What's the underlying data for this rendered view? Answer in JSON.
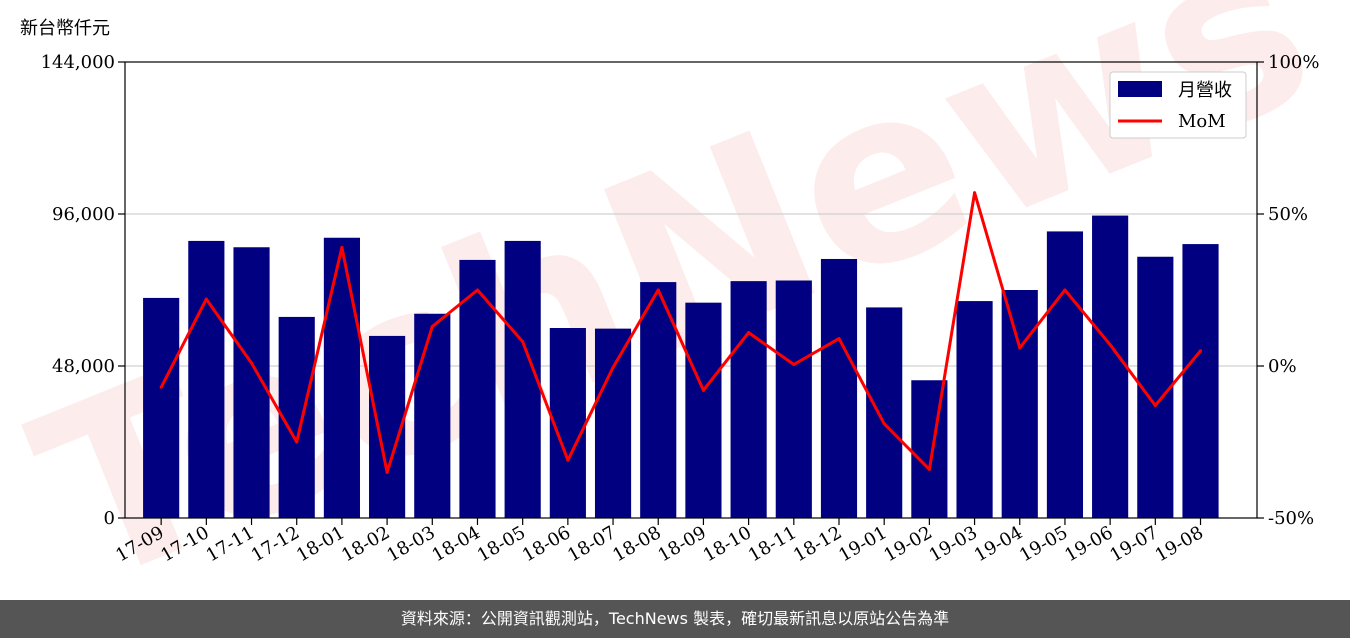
{
  "chart_data": {
    "type": "bar",
    "y_unit_label": "新台幣仟元",
    "categories": [
      "17-09",
      "17-10",
      "17-11",
      "17-12",
      "18-01",
      "18-02",
      "18-03",
      "18-04",
      "18-05",
      "18-06",
      "18-07",
      "18-08",
      "18-09",
      "18-10",
      "18-11",
      "18-12",
      "19-01",
      "19-02",
      "19-03",
      "19-04",
      "19-05",
      "19-06",
      "19-07",
      "19-08"
    ],
    "series": [
      {
        "name": "月營收",
        "type": "bar",
        "axis": "left",
        "color": "#000080",
        "values": [
          69500,
          87500,
          85500,
          63500,
          88500,
          57500,
          64500,
          81500,
          87500,
          60000,
          59800,
          74500,
          68000,
          74800,
          75000,
          81800,
          66500,
          43500,
          68500,
          72000,
          90500,
          95500,
          82500,
          86500
        ]
      },
      {
        "name": "MoM",
        "type": "line",
        "axis": "right",
        "color": "#ff0000",
        "values": [
          -7,
          22,
          1,
          -25,
          39,
          -35,
          13,
          25,
          8,
          -31,
          -0.5,
          25,
          -8,
          11,
          0.5,
          9,
          -19,
          -34,
          57,
          6,
          25,
          7,
          -13,
          5
        ]
      }
    ],
    "left_axis": {
      "ylim": [
        0,
        144000
      ],
      "ticks": [
        "0",
        "48,000",
        "96,000",
        "144,000"
      ],
      "tick_values": [
        0,
        48000,
        96000,
        144000
      ]
    },
    "right_axis": {
      "ylim": [
        -50,
        100
      ],
      "ticks": [
        "-50%",
        "0%",
        "50%",
        "100%"
      ],
      "tick_values": [
        -50,
        0,
        50,
        100
      ]
    },
    "grid": "horizontal",
    "legend_placement": "top-right",
    "watermark": "TechNews"
  },
  "footer": {
    "text": "資料來源：公開資訊觀測站，TechNews 製表，確切最新訊息以原站公告為準"
  }
}
